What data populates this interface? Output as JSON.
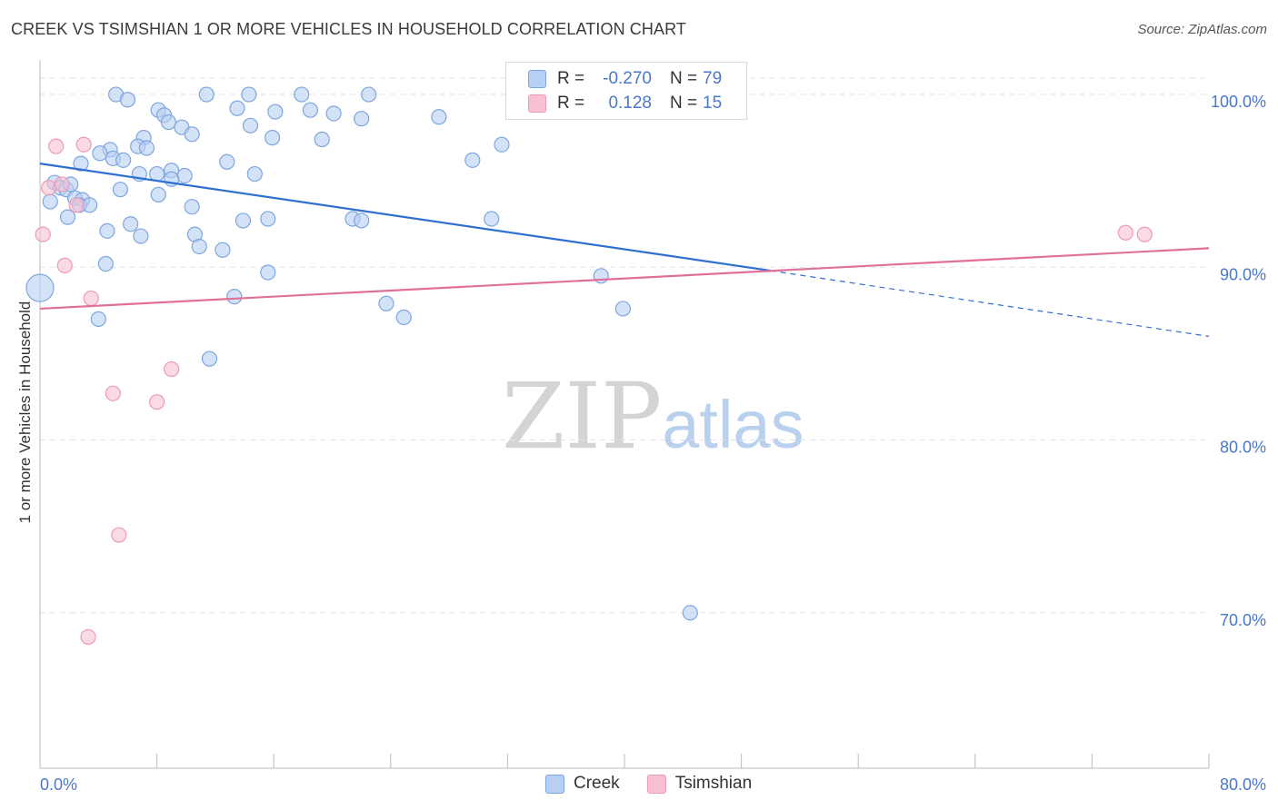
{
  "title": "CREEK VS TSIMSHIAN 1 OR MORE VEHICLES IN HOUSEHOLD CORRELATION CHART",
  "source": "Source: ZipAtlas.com",
  "watermark": {
    "zip": "ZIP",
    "atlas": "atlas"
  },
  "legend": {
    "r_label": "R =",
    "n_label": "N =",
    "rows": [
      {
        "r": "-0.270",
        "n": "79"
      },
      {
        "r": "0.128",
        "n": "15"
      }
    ]
  },
  "bottom_legend": [
    "Creek",
    "Tsimshian"
  ],
  "colors": {
    "creek_fill": "#b7cff2",
    "creek_stroke": "#7ea6de",
    "creek_line": "#2f6fcf",
    "tsimshian_fill": "#f7c1d2",
    "tsimshian_stroke": "#ee9ab4",
    "tsimshian_line": "#e07098",
    "axis_label": "#4a78c9",
    "grid": "#e3e3e3"
  },
  "chart_data": {
    "type": "scatter",
    "title": "CREEK VS TSIMSHIAN 1 OR MORE VEHICLES IN HOUSEHOLD CORRELATION CHART",
    "xlabel": "",
    "ylabel": "1 or more Vehicles in Household",
    "xlim": [
      0,
      80
    ],
    "ylim": [
      61,
      102
    ],
    "x_tick_labels": [
      "0.0%",
      "80.0%"
    ],
    "y_ticks": [
      70,
      80,
      90,
      100
    ],
    "y_tick_labels": [
      "70.0%",
      "80.0%",
      "90.0%",
      "100.0%"
    ],
    "grid": true,
    "legend_position": "top-center",
    "series": [
      {
        "name": "Creek",
        "R": -0.27,
        "N": 79,
        "trend": {
          "x": [
            0,
            50
          ],
          "y": [
            96.0,
            89.8
          ],
          "dashed_to": [
            80,
            86.0
          ]
        },
        "points": [
          [
            5.2,
            100
          ],
          [
            6.0,
            99.7
          ],
          [
            11.4,
            100
          ],
          [
            14.3,
            100
          ],
          [
            17.9,
            100
          ],
          [
            22.5,
            100
          ],
          [
            8.1,
            99.1
          ],
          [
            8.5,
            98.8
          ],
          [
            8.8,
            98.4
          ],
          [
            9.7,
            98.1
          ],
          [
            10.4,
            97.7
          ],
          [
            13.5,
            99.2
          ],
          [
            16.1,
            99.0
          ],
          [
            18.5,
            99.1
          ],
          [
            20.1,
            98.9
          ],
          [
            22.0,
            98.6
          ],
          [
            27.3,
            98.7
          ],
          [
            19.3,
            97.4
          ],
          [
            7.1,
            97.5
          ],
          [
            14.4,
            98.2
          ],
          [
            15.9,
            97.5
          ],
          [
            29.6,
            96.2
          ],
          [
            31.6,
            97.1
          ],
          [
            6.7,
            97.0
          ],
          [
            4.8,
            96.8
          ],
          [
            7.3,
            96.9
          ],
          [
            4.1,
            96.6
          ],
          [
            5.0,
            96.3
          ],
          [
            5.7,
            96.2
          ],
          [
            2.8,
            96.0
          ],
          [
            12.8,
            96.1
          ],
          [
            9.0,
            95.6
          ],
          [
            6.8,
            95.4
          ],
          [
            8.0,
            95.4
          ],
          [
            9.9,
            95.3
          ],
          [
            14.7,
            95.4
          ],
          [
            9.0,
            95.1
          ],
          [
            1.0,
            94.9
          ],
          [
            1.4,
            94.6
          ],
          [
            1.8,
            94.5
          ],
          [
            2.1,
            94.8
          ],
          [
            5.5,
            94.5
          ],
          [
            8.1,
            94.2
          ],
          [
            2.4,
            94.0
          ],
          [
            2.9,
            93.9
          ],
          [
            2.7,
            93.6
          ],
          [
            3.4,
            93.6
          ],
          [
            0.7,
            93.8
          ],
          [
            10.4,
            93.5
          ],
          [
            1.9,
            92.9
          ],
          [
            6.2,
            92.5
          ],
          [
            4.6,
            92.1
          ],
          [
            13.9,
            92.7
          ],
          [
            15.6,
            92.8
          ],
          [
            21.4,
            92.8
          ],
          [
            22.0,
            92.7
          ],
          [
            30.9,
            92.8
          ],
          [
            6.9,
            91.8
          ],
          [
            10.6,
            91.9
          ],
          [
            10.9,
            91.2
          ],
          [
            12.5,
            91.0
          ],
          [
            4.5,
            90.2
          ],
          [
            15.6,
            89.7
          ],
          [
            38.4,
            89.5
          ],
          [
            39.9,
            87.6
          ],
          [
            13.3,
            88.3
          ],
          [
            23.7,
            87.9
          ],
          [
            0.0,
            88.8
          ],
          [
            4.0,
            87.0
          ],
          [
            24.9,
            87.1
          ],
          [
            11.6,
            84.7
          ],
          [
            44.5,
            70.0
          ]
        ]
      },
      {
        "name": "Tsimshian",
        "R": 0.128,
        "N": 15,
        "trend": {
          "x": [
            0,
            80
          ],
          "y": [
            87.6,
            91.1
          ]
        },
        "points": [
          [
            1.1,
            97.0
          ],
          [
            3.0,
            97.1
          ],
          [
            0.6,
            94.6
          ],
          [
            1.5,
            94.8
          ],
          [
            2.5,
            93.6
          ],
          [
            0.2,
            91.9
          ],
          [
            1.7,
            90.1
          ],
          [
            3.5,
            88.2
          ],
          [
            74.3,
            92.0
          ],
          [
            75.6,
            91.9
          ],
          [
            9.0,
            84.1
          ],
          [
            5.0,
            82.7
          ],
          [
            8.0,
            82.2
          ],
          [
            5.4,
            74.5
          ],
          [
            3.3,
            68.6
          ]
        ]
      }
    ]
  }
}
